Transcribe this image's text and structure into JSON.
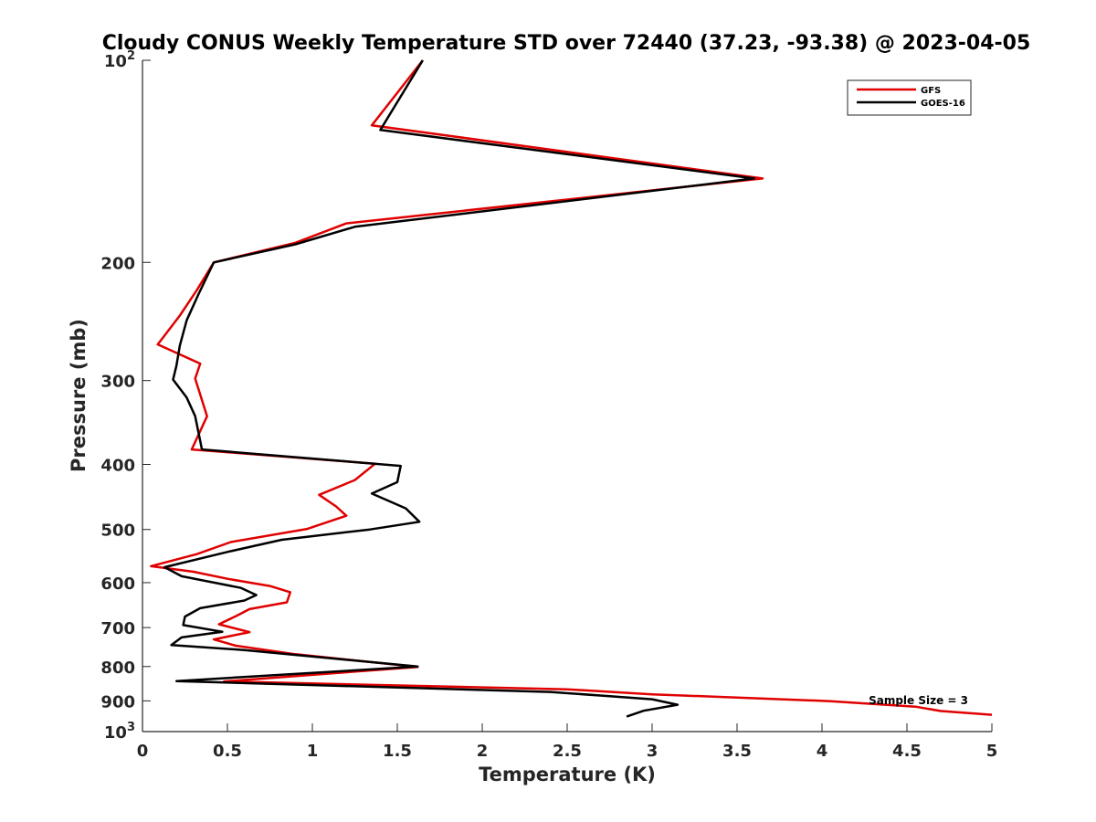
{
  "chart_data": {
    "type": "line",
    "title": "Cloudy CONUS Weekly Temperature STD over 72440 (37.23, -93.38) @ 2023-04-05",
    "xlabel": "Temperature (K)",
    "ylabel": "Pressure (mb)",
    "xlim": [
      0,
      5
    ],
    "ylim": [
      100,
      1000
    ],
    "yscale": "log",
    "y_reversed": true,
    "grid": false,
    "legend_position": "top-right",
    "x_ticks": [
      {
        "value": 0,
        "label": "0"
      },
      {
        "value": 0.5,
        "label": "0.5"
      },
      {
        "value": 1,
        "label": "1"
      },
      {
        "value": 1.5,
        "label": "1.5"
      },
      {
        "value": 2,
        "label": "2"
      },
      {
        "value": 2.5,
        "label": "2.5"
      },
      {
        "value": 3,
        "label": "3"
      },
      {
        "value": 3.5,
        "label": "3.5"
      },
      {
        "value": 4,
        "label": "4"
      },
      {
        "value": 4.5,
        "label": "4.5"
      },
      {
        "value": 5,
        "label": "5"
      }
    ],
    "y_ticks": [
      {
        "value": 100,
        "label": "10",
        "sup": "2"
      },
      {
        "value": 200,
        "label": "200",
        "sup": ""
      },
      {
        "value": 300,
        "label": "300",
        "sup": ""
      },
      {
        "value": 400,
        "label": "400",
        "sup": ""
      },
      {
        "value": 500,
        "label": "500",
        "sup": ""
      },
      {
        "value": 600,
        "label": "600",
        "sup": ""
      },
      {
        "value": 700,
        "label": "700",
        "sup": ""
      },
      {
        "value": 800,
        "label": "800",
        "sup": ""
      },
      {
        "value": 900,
        "label": "900",
        "sup": ""
      },
      {
        "value": 1000,
        "label": "10",
        "sup": "3"
      }
    ],
    "annotation": "Sample Size = 3",
    "series": [
      {
        "name": "GFS",
        "color": "#e00000",
        "points": [
          [
            1.65,
            100
          ],
          [
            1.35,
            125
          ],
          [
            3.65,
            150
          ],
          [
            1.2,
            175
          ],
          [
            0.9,
            187
          ],
          [
            0.42,
            200
          ],
          [
            0.32,
            220
          ],
          [
            0.22,
            240
          ],
          [
            0.09,
            265
          ],
          [
            0.34,
            283
          ],
          [
            0.31,
            298
          ],
          [
            0.38,
            339
          ],
          [
            0.29,
            380
          ],
          [
            1.37,
            399
          ],
          [
            1.25,
            422
          ],
          [
            1.04,
            444
          ],
          [
            1.14,
            462
          ],
          [
            1.2,
            477
          ],
          [
            0.97,
            499
          ],
          [
            0.52,
            522
          ],
          [
            0.32,
            544
          ],
          [
            0.05,
            567
          ],
          [
            0.3,
            578
          ],
          [
            0.5,
            592
          ],
          [
            0.75,
            607
          ],
          [
            0.87,
            620
          ],
          [
            0.85,
            642
          ],
          [
            0.63,
            657
          ],
          [
            0.55,
            673
          ],
          [
            0.45,
            692
          ],
          [
            0.63,
            711
          ],
          [
            0.42,
            729
          ],
          [
            0.55,
            745
          ],
          [
            0.9,
            767
          ],
          [
            1.62,
            801
          ],
          [
            0.48,
            842
          ],
          [
            2.5,
            865
          ],
          [
            3.0,
            880
          ],
          [
            3.5,
            890
          ],
          [
            4.05,
            901
          ],
          [
            4.55,
            918
          ],
          [
            4.7,
            932
          ],
          [
            5.0,
            944
          ]
        ]
      },
      {
        "name": "GOES-16",
        "color": "#000000",
        "points": [
          [
            1.65,
            100
          ],
          [
            1.4,
            127
          ],
          [
            3.6,
            150
          ],
          [
            1.25,
            177
          ],
          [
            0.9,
            188
          ],
          [
            0.42,
            200
          ],
          [
            0.33,
            223
          ],
          [
            0.26,
            244
          ],
          [
            0.22,
            266
          ],
          [
            0.2,
            285
          ],
          [
            0.18,
            299
          ],
          [
            0.26,
            318
          ],
          [
            0.31,
            339
          ],
          [
            0.35,
            380
          ],
          [
            1.52,
            402
          ],
          [
            1.5,
            425
          ],
          [
            1.35,
            442
          ],
          [
            1.55,
            465
          ],
          [
            1.63,
            487
          ],
          [
            1.34,
            500
          ],
          [
            0.82,
            518
          ],
          [
            0.5,
            540
          ],
          [
            0.13,
            569
          ],
          [
            0.23,
            587
          ],
          [
            0.58,
            611
          ],
          [
            0.67,
            626
          ],
          [
            0.6,
            638
          ],
          [
            0.34,
            655
          ],
          [
            0.25,
            674
          ],
          [
            0.24,
            694
          ],
          [
            0.47,
            710
          ],
          [
            0.23,
            724
          ],
          [
            0.17,
            743
          ],
          [
            0.6,
            756
          ],
          [
            1.62,
            800
          ],
          [
            0.2,
            841
          ],
          [
            2.4,
            873
          ],
          [
            3.0,
            895
          ],
          [
            3.15,
            912
          ],
          [
            2.95,
            931
          ],
          [
            2.85,
            950
          ]
        ]
      }
    ]
  }
}
